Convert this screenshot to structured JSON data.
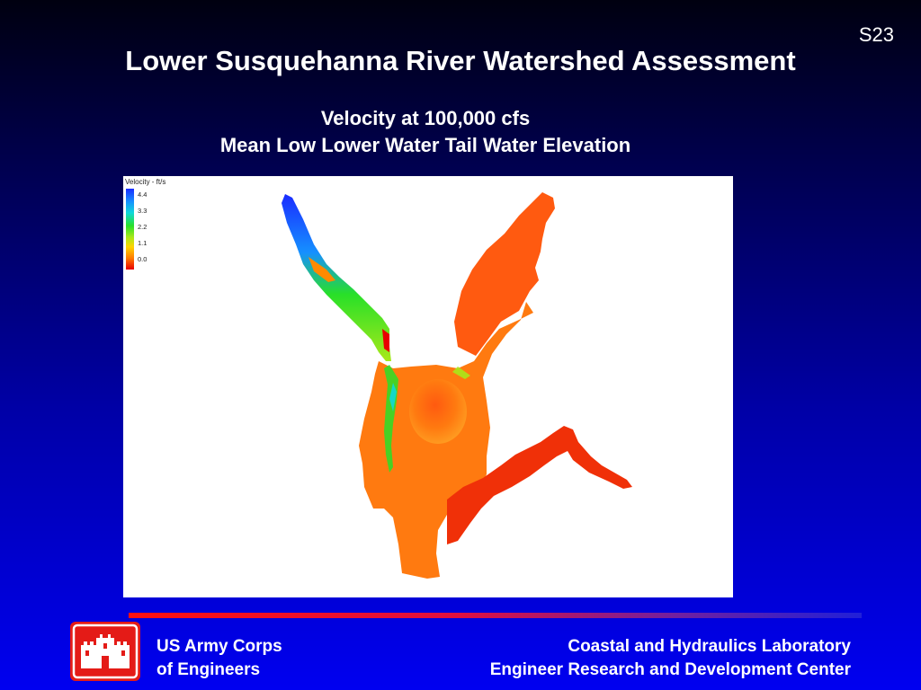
{
  "slide": {
    "number": "S23",
    "title": "Lower Susquehanna River Watershed Assessment",
    "subtitle_line1": "Velocity at 100,000 cfs",
    "subtitle_line2": "Mean Low Lower Water Tail Water Elevation"
  },
  "figure": {
    "legend": {
      "title": "Velocity - ft/s",
      "ticks": [
        "4.4",
        "3.3",
        "2.2",
        "1.1",
        "0.0"
      ]
    },
    "colors": {
      "high_velocity": "#1a2cff",
      "mid_velocity": "#28e028",
      "low_velocity": "#e80000"
    }
  },
  "footer": {
    "org_line1": "US Army Corps",
    "org_line2": "of Engineers",
    "lab_line1": "Coastal and Hydraulics Laboratory",
    "lab_line2": "Engineer Research and Development Center",
    "logo_icon": "castle-icon"
  }
}
